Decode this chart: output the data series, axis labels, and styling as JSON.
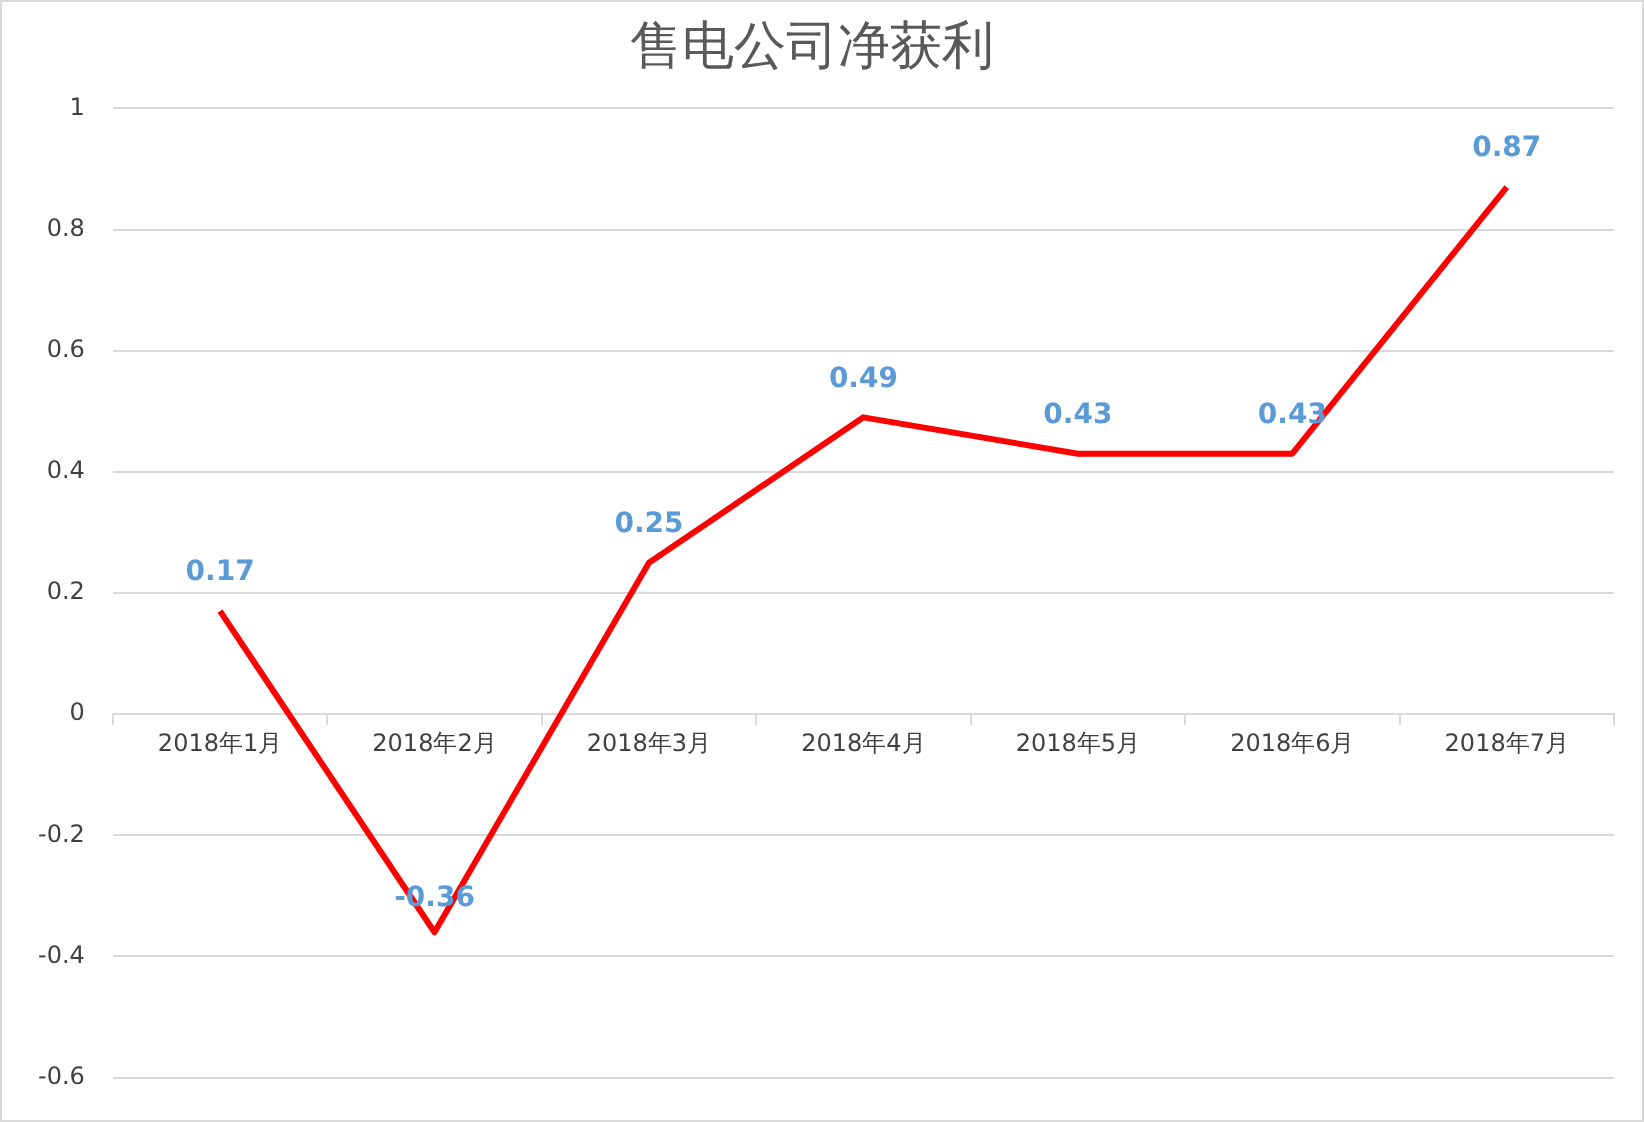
{
  "chart_data": {
    "type": "line",
    "title": "售电公司净获利",
    "categories": [
      "2018年1月",
      "2018年2月",
      "2018年3月",
      "2018年4月",
      "2018年5月",
      "2018年6月",
      "2018年7月"
    ],
    "series": [
      {
        "color": "#ff0000",
        "values": [
          0.17,
          -0.36,
          0.25,
          0.49,
          0.43,
          0.43,
          0.87
        ]
      }
    ],
    "ylim": [
      -0.6,
      1
    ],
    "yticks": [
      -0.6,
      -0.4,
      -0.2,
      0,
      0.2,
      0.4,
      0.6,
      0.8,
      1
    ],
    "grid": "y",
    "legend": false,
    "marker": "none",
    "line_style": "solid",
    "data_labels": true
  }
}
